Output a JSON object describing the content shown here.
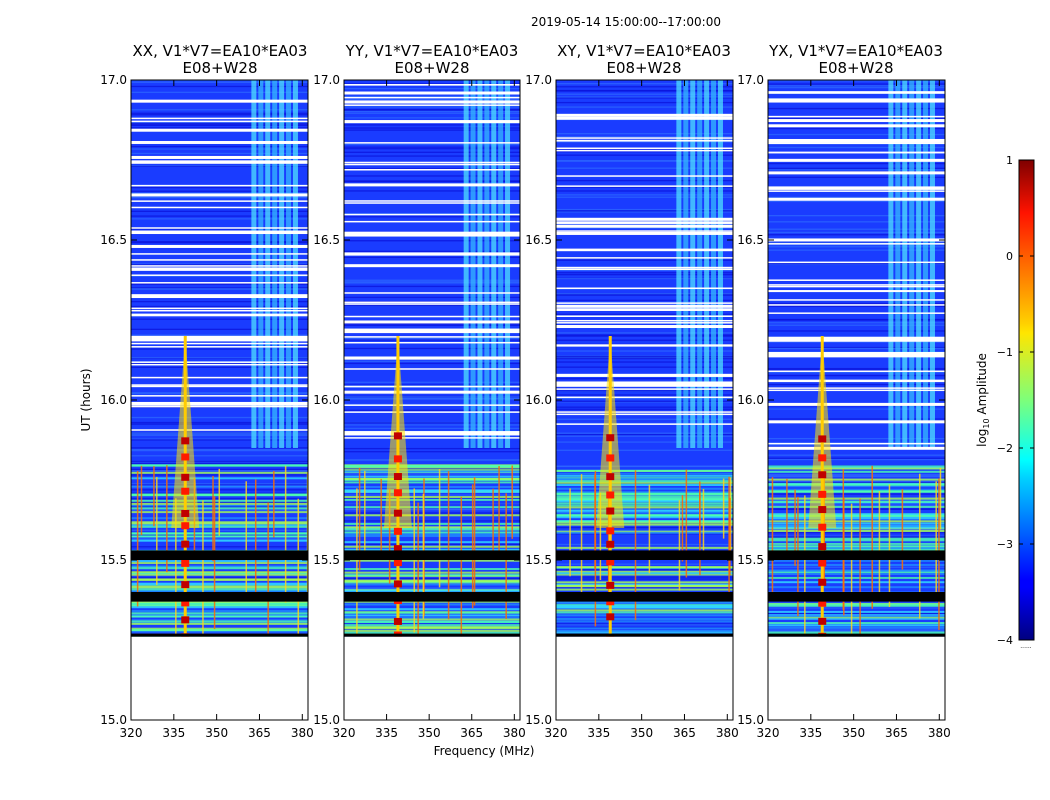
{
  "figure": {
    "suptitle": "2019-05-14  15:00:00--17:00:00"
  },
  "chart_data": [
    {
      "type": "heatmap",
      "title_line1": "XX, V1*V7=EA10*EA03",
      "title_line2": "E08+W28",
      "xlabel": "",
      "ylabel": "UT (hours)",
      "xlim": [
        320,
        382
      ],
      "ylim": [
        15.0,
        17.0
      ],
      "xticks": [
        "320",
        "335",
        "350",
        "365",
        "380"
      ],
      "xtick_values": [
        320,
        335,
        350,
        365,
        380
      ],
      "yticks": [
        "15.0",
        "15.5",
        "16.0",
        "16.5",
        "17.0"
      ],
      "ytick_values": [
        15.0,
        15.5,
        16.0,
        16.5,
        17.0
      ],
      "no_data_below_ut": 15.26,
      "flagged_bands_ut": [
        [
          15.26,
          15.27
        ],
        [
          15.37,
          15.4
        ],
        [
          15.5,
          15.53
        ]
      ],
      "rfi_line_mhz": 339,
      "striped_region_mhz": [
        362,
        379
      ]
    },
    {
      "type": "heatmap",
      "title_line1": "YY, V1*V7=EA10*EA03",
      "title_line2": "E08+W28",
      "xlabel": "",
      "ylabel": "",
      "xlim": [
        320,
        382
      ],
      "ylim": [
        15.0,
        17.0
      ],
      "xticks": [
        "320",
        "335",
        "350",
        "365",
        "380"
      ],
      "xtick_values": [
        320,
        335,
        350,
        365,
        380
      ],
      "yticks": [
        "15.0",
        "15.5",
        "16.0",
        "16.5",
        "17.0"
      ],
      "ytick_values": [
        15.0,
        15.5,
        16.0,
        16.5,
        17.0
      ],
      "no_data_below_ut": 15.26,
      "flagged_bands_ut": [
        [
          15.26,
          15.27
        ],
        [
          15.37,
          15.4
        ],
        [
          15.5,
          15.53
        ]
      ],
      "rfi_line_mhz": 339,
      "striped_region_mhz": [
        362,
        379
      ]
    },
    {
      "type": "heatmap",
      "title_line1": "XY, V1*V7=EA10*EA03",
      "title_line2": "E08+W28",
      "xlabel": "Frequency (MHz)",
      "ylabel": "",
      "xlim": [
        320,
        382
      ],
      "ylim": [
        15.0,
        17.0
      ],
      "xticks": [
        "320",
        "335",
        "350",
        "365",
        "380"
      ],
      "xtick_values": [
        320,
        335,
        350,
        365,
        380
      ],
      "yticks": [
        "15.0",
        "15.5",
        "16.0",
        "16.5",
        "17.0"
      ],
      "ytick_values": [
        15.0,
        15.5,
        16.0,
        16.5,
        17.0
      ],
      "no_data_below_ut": 15.26,
      "flagged_bands_ut": [
        [
          15.26,
          15.27
        ],
        [
          15.37,
          15.4
        ],
        [
          15.5,
          15.53
        ]
      ],
      "rfi_line_mhz": 339,
      "striped_region_mhz": [
        362,
        379
      ]
    },
    {
      "type": "heatmap",
      "title_line1": "YX, V1*V7=EA10*EA03",
      "title_line2": "E08+W28",
      "xlabel": "",
      "ylabel": "",
      "xlim": [
        320,
        382
      ],
      "ylim": [
        15.0,
        17.0
      ],
      "xticks": [
        "320",
        "335",
        "350",
        "365",
        "380"
      ],
      "xtick_values": [
        320,
        335,
        350,
        365,
        380
      ],
      "yticks": [
        "15.0",
        "15.5",
        "16.0",
        "16.5",
        "17.0"
      ],
      "ytick_values": [
        15.0,
        15.5,
        16.0,
        16.5,
        17.0
      ],
      "no_data_below_ut": 15.26,
      "flagged_bands_ut": [
        [
          15.26,
          15.27
        ],
        [
          15.37,
          15.4
        ],
        [
          15.5,
          15.53
        ]
      ],
      "rfi_line_mhz": 339,
      "striped_region_mhz": [
        362,
        379
      ]
    }
  ],
  "colorbar": {
    "label_prefix": "log",
    "label_sub": "10",
    "label_suffix": " Amplitude",
    "range": [
      -4,
      1
    ],
    "tick_values": [
      1,
      0,
      -1,
      -2,
      -3,
      -4
    ],
    "tick_labels": [
      "1",
      "0",
      "−1",
      "−2",
      "−3",
      "−4"
    ],
    "colormap": "jet",
    "extend_marker": "......"
  },
  "colors": {
    "jet_low": "#00007f",
    "jet_high": "#7f0000",
    "flag": "#000000"
  }
}
